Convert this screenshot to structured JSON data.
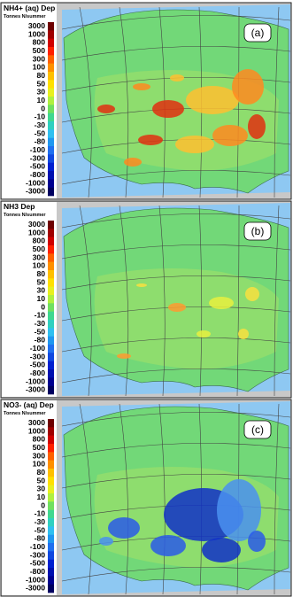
{
  "panels": [
    {
      "title": "NH4+ (aq) Dep",
      "units": "Tonnes N/summer",
      "label": "(a)"
    },
    {
      "title": "NH3 Dep",
      "units": "Tonnes N/summer",
      "label": "(b)"
    },
    {
      "title": "NO3- (aq) Dep",
      "units": "Tonnes N/summer",
      "label": "(c)"
    }
  ],
  "colorbar": {
    "labels": [
      "3000",
      "1000",
      "800",
      "500",
      "300",
      "100",
      "80",
      "50",
      "30",
      "10",
      "0",
      "-10",
      "-30",
      "-50",
      "-80",
      "-100",
      "-300",
      "-500",
      "-800",
      "-1000",
      "-3000"
    ]
  }
}
